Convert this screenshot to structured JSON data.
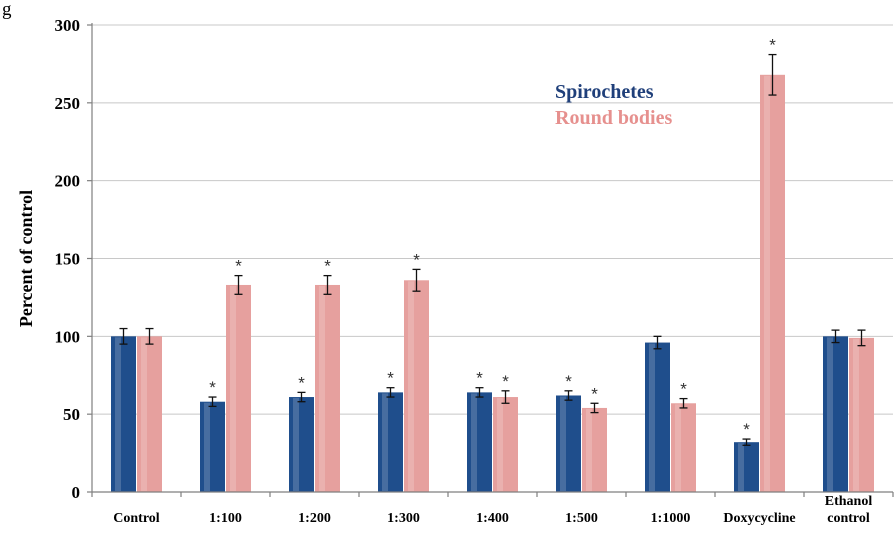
{
  "header_fragment": "g",
  "chart_data": {
    "type": "bar",
    "title": "",
    "xlabel": "",
    "ylabel": "Percent of control",
    "ylim": [
      0,
      300
    ],
    "yticks": [
      0,
      50,
      100,
      150,
      200,
      250,
      300
    ],
    "grid": true,
    "legend": "top-right",
    "categories": [
      "Control",
      "1:100",
      "1:200",
      "1:300",
      "1:400",
      "1:500",
      "1:1000",
      "Doxycycline",
      "Ethanol control"
    ],
    "series": [
      {
        "name": "Spirochetes",
        "color": "#1f4e8c",
        "values": [
          100,
          58,
          61,
          64,
          64,
          62,
          96,
          32,
          100
        ],
        "errors": [
          5,
          3,
          3,
          3,
          3,
          3,
          4,
          2,
          4
        ],
        "significant": [
          false,
          true,
          true,
          true,
          true,
          true,
          false,
          true,
          false
        ]
      },
      {
        "name": "Round bodies",
        "color": "#e6a09e",
        "values": [
          100,
          133,
          133,
          136,
          61,
          54,
          57,
          268,
          99
        ],
        "errors": [
          5,
          6,
          6,
          7,
          4,
          3,
          3,
          13,
          5
        ],
        "significant": [
          false,
          true,
          true,
          true,
          true,
          true,
          true,
          true,
          false
        ]
      }
    ],
    "significance_marker": "*",
    "legend_colors": {
      "Spirochetes": "#1f3f7a",
      "Round bodies": "#e6908e"
    }
  }
}
